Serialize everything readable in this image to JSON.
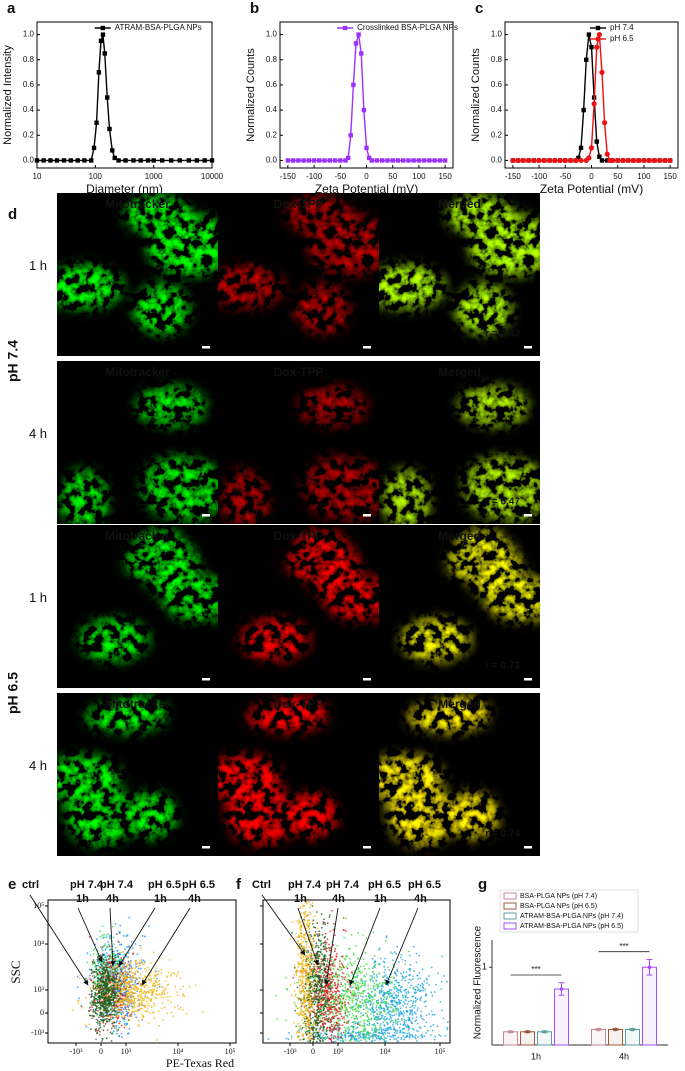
{
  "chart_data": [
    {
      "type": "line",
      "label": "a",
      "xlabel": "Diameter (nm)",
      "ylabel": "Normalized Intensity",
      "xscale": "log",
      "xlim": [
        10,
        10000
      ],
      "xticks": [
        10,
        100,
        1000,
        10000
      ],
      "ylim": [
        -0.06,
        1.1
      ],
      "yticks": [
        {
          "value": 0,
          "label": "0.0"
        },
        0.2,
        0.4,
        0.6,
        0.8,
        {
          "value": 1,
          "label": "1.0"
        }
      ],
      "legend_position": "top",
      "series": [
        {
          "name": "ATRAM-BSA-PLGA NPs",
          "color": "#000000",
          "marker": "square",
          "x": [
            10,
            13,
            17,
            22,
            29,
            38,
            50,
            65,
            85,
            95,
            105,
            115,
            125,
            135,
            145,
            160,
            175,
            195,
            215,
            250,
            330,
            450,
            600,
            800,
            1000,
            1400,
            2000,
            2800,
            4000,
            5500,
            7500,
            10000
          ],
          "values": [
            0,
            0,
            0,
            0,
            0,
            0,
            0,
            0,
            0,
            0.1,
            0.3,
            0.7,
            0.95,
            1,
            0.85,
            0.5,
            0.25,
            0.08,
            0.02,
            0,
            0,
            0,
            0,
            0,
            0,
            0,
            0,
            0,
            0,
            0,
            0,
            0
          ]
        }
      ]
    },
    {
      "type": "line",
      "label": "b",
      "xlabel": "Zeta Potential (mV)",
      "ylabel": "Normalized Counts",
      "xlim": [
        -165,
        165
      ],
      "xticks": [
        -150,
        -100,
        -50,
        0,
        50,
        100,
        150
      ],
      "ylim": [
        -0.06,
        1.1
      ],
      "yticks": [
        {
          "value": 0,
          "label": "0.0"
        },
        0.2,
        0.4,
        0.6,
        0.8,
        {
          "value": 1,
          "label": "1.0"
        }
      ],
      "legend_position": "top",
      "series": [
        {
          "name": "Crosslinked BSA-PLGA NPs",
          "color": "#9b30ff",
          "marker": "square",
          "x": [
            -150,
            -140,
            -130,
            -120,
            -110,
            -100,
            -90,
            -80,
            -70,
            -60,
            -50,
            -40,
            -35,
            -30,
            -25,
            -20,
            -15,
            -10,
            -5,
            0,
            5,
            10,
            20,
            30,
            40,
            50,
            60,
            70,
            80,
            90,
            100,
            110,
            120,
            130,
            140,
            150
          ],
          "values": [
            0,
            0,
            0,
            0,
            0,
            0,
            0,
            0,
            0,
            0,
            0,
            0,
            0.02,
            0.2,
            0.6,
            0.93,
            1,
            0.85,
            0.4,
            0.1,
            0.02,
            0,
            0,
            0,
            0,
            0,
            0,
            0,
            0,
            0,
            0,
            0,
            0,
            0,
            0,
            0
          ]
        }
      ]
    },
    {
      "type": "line",
      "label": "c",
      "xlabel": "Zeta Potential (mV)",
      "ylabel": "Normalized Counts",
      "xlim": [
        -165,
        165
      ],
      "xticks": [
        -150,
        -100,
        -50,
        0,
        50,
        100,
        150
      ],
      "ylim": [
        -0.06,
        1.1
      ],
      "yticks": [
        {
          "value": 0,
          "label": "0.0"
        },
        0.2,
        0.4,
        0.6,
        0.8,
        {
          "value": 1,
          "label": "1.0"
        }
      ],
      "legend_position": "upper right",
      "series": [
        {
          "name": "pH 7.4",
          "color": "#000000",
          "marker": "square",
          "x": [
            -150,
            -140,
            -130,
            -120,
            -110,
            -100,
            -90,
            -80,
            -70,
            -60,
            -50,
            -40,
            -30,
            -25,
            -20,
            -15,
            -10,
            -5,
            0,
            5,
            10,
            15,
            20,
            30,
            40,
            50,
            60,
            70,
            80,
            90,
            100,
            110,
            120,
            130,
            140,
            150
          ],
          "values": [
            0,
            0,
            0,
            0,
            0,
            0,
            0,
            0,
            0,
            0,
            0,
            0,
            0,
            0.02,
            0.1,
            0.4,
            0.8,
            1,
            0.9,
            0.5,
            0.15,
            0.03,
            0,
            0,
            0,
            0,
            0,
            0,
            0,
            0,
            0,
            0,
            0,
            0,
            0,
            0
          ]
        },
        {
          "name": "pH 6.5",
          "color": "#ee1111",
          "marker": "circle",
          "x": [
            -150,
            -140,
            -130,
            -120,
            -110,
            -100,
            -90,
            -80,
            -70,
            -60,
            -50,
            -40,
            -30,
            -20,
            -10,
            -5,
            0,
            5,
            10,
            15,
            20,
            25,
            30,
            35,
            40,
            50,
            60,
            70,
            80,
            90,
            100,
            110,
            120,
            130,
            140,
            150
          ],
          "values": [
            0,
            0,
            0,
            0,
            0,
            0,
            0,
            0,
            0,
            0,
            0,
            0,
            0,
            0,
            0,
            0.02,
            0.1,
            0.45,
            0.9,
            1,
            0.7,
            0.3,
            0.05,
            0,
            0,
            0,
            0,
            0,
            0,
            0,
            0,
            0,
            0,
            0,
            0,
            0
          ]
        }
      ]
    },
    {
      "type": "bar",
      "label": "g",
      "ylabel": "Normalized Fluorescence",
      "categories": [
        "1h",
        "4h"
      ],
      "ylim": [
        0,
        1.35
      ],
      "yticks": [
        1
      ],
      "hollow": true,
      "annotations": [
        "***",
        "***"
      ],
      "series": [
        {
          "name": "BSA-PLGA NPs (pH 7.4)",
          "color": "#c48a96",
          "values": [
            0.17,
            0.2
          ],
          "errors": [
            0.01,
            0.01
          ]
        },
        {
          "name": "BSA-PLGA NPs (pH 6.5)",
          "color": "#9c5a3c",
          "values": [
            0.17,
            0.2
          ],
          "errors": [
            0.01,
            0.01
          ]
        },
        {
          "name": "ATRAM-BSA-PLGA NPs (pH 7.4)",
          "color": "#5f9ea0",
          "values": [
            0.17,
            0.2
          ],
          "errors": [
            0.01,
            0.01
          ]
        },
        {
          "name": "ATRAM-BSA-PLGA NPs (pH 6.5)",
          "color": "#a64dff",
          "values": [
            0.72,
            1
          ],
          "errors": [
            0.08,
            0.1
          ]
        }
      ]
    }
  ],
  "microscopy": {
    "label": "d",
    "columns": [
      "Mitotracker",
      "Dox-TPP",
      "Merged"
    ],
    "groups": [
      {
        "name": "pH 7.4",
        "rows": [
          {
            "time": "1 h",
            "r": "r = 0.42"
          },
          {
            "time": "4 h",
            "r": "r = 0.47"
          }
        ]
      },
      {
        "name": "pH 6.5",
        "rows": [
          {
            "time": "1 h",
            "r": "r = 0.73"
          },
          {
            "time": "4 h",
            "r": "r = 0.74"
          }
        ]
      }
    ]
  },
  "flow": {
    "x_title": "PE-Texas Red",
    "y_title": "SSC",
    "panels": [
      {
        "label": "e",
        "y_ticks": [
          "10⁵",
          "10⁴",
          "10³",
          "0",
          "-10³"
        ],
        "x_ticks": [
          "-10³",
          "0",
          "10³",
          "10⁴",
          "10⁵"
        ],
        "legend": [
          {
            "text": "ctrl",
            "color": "#1d5e1d"
          },
          {
            "text": "pH 7.4",
            "sub": "1h",
            "color": "#33dd77"
          },
          {
            "text": "pH 7.4",
            "sub": "4h",
            "color": "#dd2222"
          },
          {
            "text": "pH 6.5",
            "sub": "1h",
            "color": "#1e90ff"
          },
          {
            "text": "pH 6.5",
            "sub": "4h",
            "color": "#f5b81a"
          }
        ]
      },
      {
        "label": "f",
        "x_ticks": [
          "-10³",
          "0",
          "10³",
          "10⁴",
          "10⁵"
        ],
        "legend": [
          {
            "text": "Ctrl",
            "color": "#f5b81a"
          },
          {
            "text": "pH 7.4",
            "sub": "1h",
            "color": "#1d5e1d"
          },
          {
            "text": "pH 7.4",
            "sub": "4h",
            "color": "#dd2222"
          },
          {
            "text": "pH 6.5",
            "sub": "1h",
            "color": "#44dd44"
          },
          {
            "text": "pH 6.5",
            "sub": "4h",
            "color": "#1ea8e0"
          }
        ]
      }
    ]
  }
}
